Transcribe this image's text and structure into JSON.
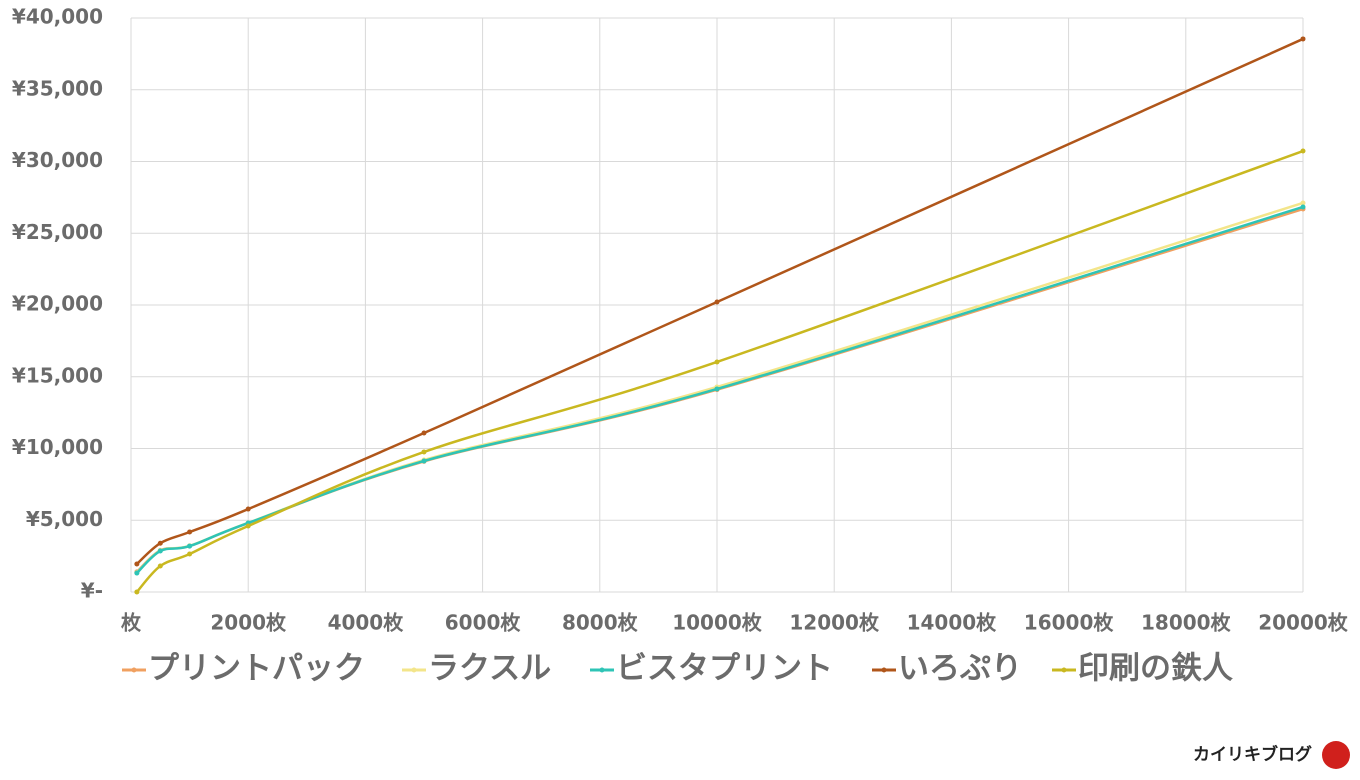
{
  "chart_data": {
    "type": "line",
    "x": [
      100,
      500,
      1000,
      2000,
      5000,
      10000,
      20000
    ],
    "xlim": [
      0,
      20000
    ],
    "xticks": [
      {
        "value": 0,
        "label": "枚"
      },
      {
        "value": 2000,
        "label": "2000枚"
      },
      {
        "value": 4000,
        "label": "4000枚"
      },
      {
        "value": 6000,
        "label": "6000枚"
      },
      {
        "value": 8000,
        "label": "8000枚"
      },
      {
        "value": 10000,
        "label": "10000枚"
      },
      {
        "value": 12000,
        "label": "12000枚"
      },
      {
        "value": 14000,
        "label": "14000枚"
      },
      {
        "value": 16000,
        "label": "16000枚"
      },
      {
        "value": 18000,
        "label": "18000枚"
      },
      {
        "value": 20000,
        "label": "20000枚"
      }
    ],
    "ylim": [
      0,
      40000
    ],
    "yticks": [
      {
        "value": 0,
        "label": "¥-"
      },
      {
        "value": 5000,
        "label": "¥5,000"
      },
      {
        "value": 10000,
        "label": "¥10,000"
      },
      {
        "value": 15000,
        "label": "¥15,000"
      },
      {
        "value": 20000,
        "label": "¥20,000"
      },
      {
        "value": 25000,
        "label": "¥25,000"
      },
      {
        "value": 30000,
        "label": "¥30,000"
      },
      {
        "value": 35000,
        "label": "¥35,000"
      },
      {
        "value": 40000,
        "label": "¥40,000"
      }
    ],
    "grid": true,
    "legend": "bottom",
    "series": [
      {
        "name": "プリントパック",
        "color": "#f0a060",
        "values": [
          1400,
          2900,
          3200,
          4800,
          9100,
          14100,
          26690
        ]
      },
      {
        "name": "ラクスル",
        "color": "#f3e58a",
        "values": [
          1350,
          2880,
          3220,
          4820,
          9200,
          14290,
          27110
        ]
      },
      {
        "name": "ビスタプリント",
        "color": "#2ec4b6",
        "values": [
          1320,
          2860,
          3200,
          4810,
          9130,
          14150,
          26830
        ]
      },
      {
        "name": "いろぷり",
        "color": "#b0561a",
        "values": [
          1950,
          3400,
          4180,
          5780,
          11080,
          20210,
          38540
        ]
      },
      {
        "name": "印刷の鉄人",
        "color": "#c9b820",
        "values": [
          0,
          1810,
          2650,
          4600,
          9760,
          16030,
          30730
        ]
      }
    ]
  },
  "watermark": "カイリキブログ"
}
